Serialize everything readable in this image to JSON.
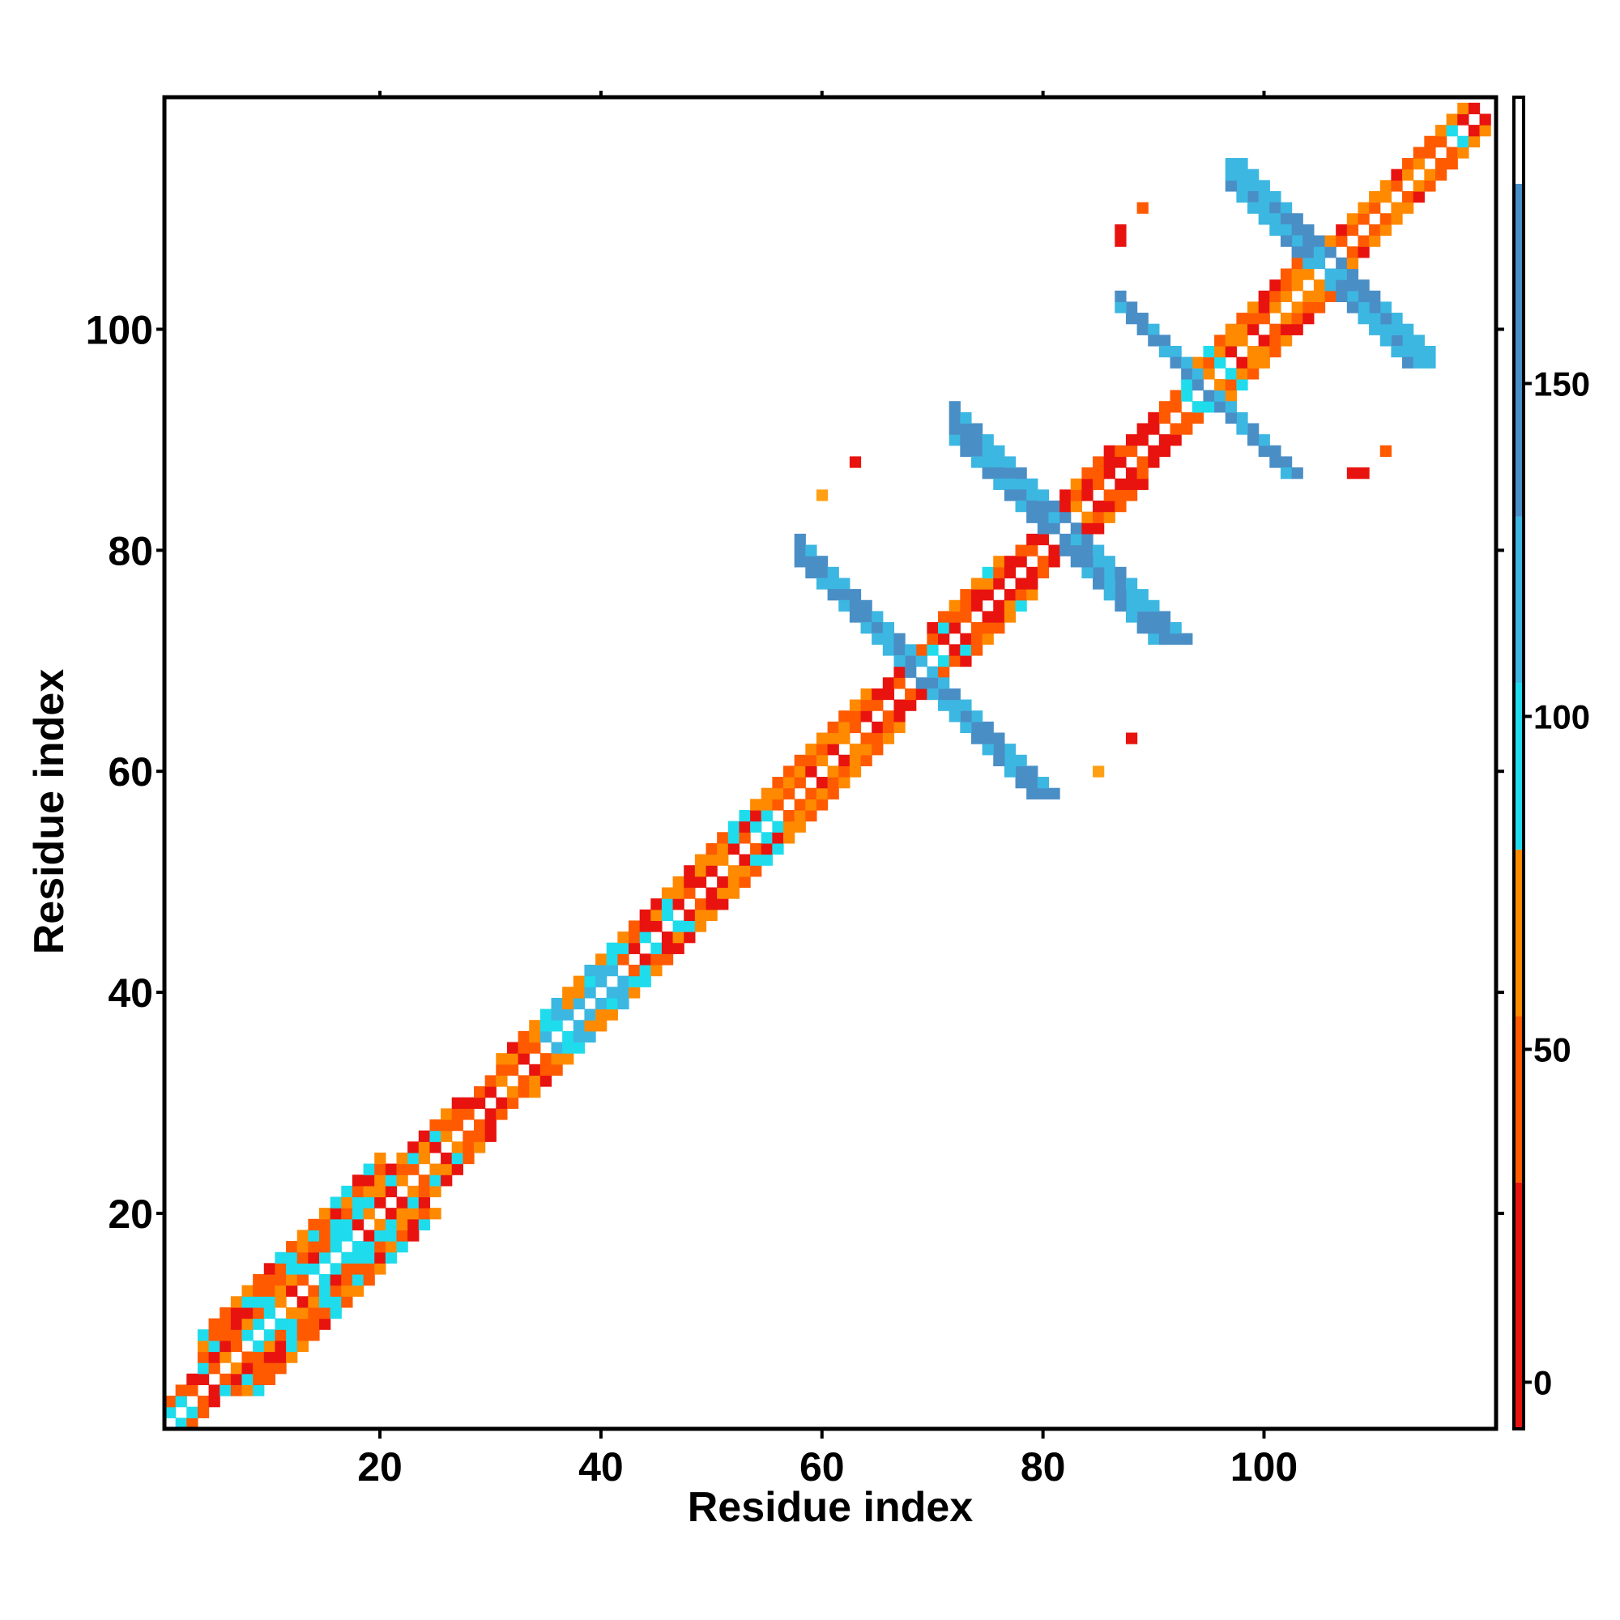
{
  "chart_data": {
    "type": "heatmap",
    "title": "",
    "xlabel": "Residue index",
    "ylabel": "Residue index",
    "n_residues": 120,
    "xlim": [
      0.5,
      121
    ],
    "ylim": [
      0.5,
      121
    ],
    "x_ticks": [
      20,
      40,
      60,
      80,
      100
    ],
    "y_ticks": [
      20,
      40,
      60,
      80,
      100
    ],
    "colorbar": {
      "range": [
        -7,
        193
      ],
      "ticks": [
        0,
        50,
        100,
        150
      ],
      "bands": [
        {
          "from": -7,
          "to": 30,
          "color": "#e8130f"
        },
        {
          "from": 30,
          "to": 55,
          "color": "#ff5a00"
        },
        {
          "from": 55,
          "to": 80,
          "color": "#ff8a00"
        },
        {
          "from": 80,
          "to": 105,
          "color": "#1fdcec"
        },
        {
          "from": 105,
          "to": 130,
          "color": "#3cb7e2"
        },
        {
          "from": 130,
          "to": 180,
          "color": "#4a8ec6"
        },
        {
          "from": 180,
          "to": 193,
          "color": "#ffffff"
        }
      ]
    },
    "colors": {
      "red": "#e8130f",
      "orange_red": "#ff5a00",
      "orange": "#ff8a00",
      "amber": "#ffa014",
      "cyan": "#1fdcec",
      "sky": "#3cb7e2",
      "steel": "#4a8ec6"
    },
    "diagonal_segments": [
      {
        "from": 1,
        "to": 4,
        "palette": [
          "red",
          "cyan",
          "orange_red"
        ],
        "width": 2
      },
      {
        "from": 4,
        "to": 20,
        "palette": [
          "orange_red",
          "orange",
          "cyan",
          "red",
          "orange_red",
          "cyan"
        ],
        "width": 5
      },
      {
        "from": 20,
        "to": 27,
        "palette": [
          "orange_red",
          "red",
          "orange",
          "cyan"
        ],
        "width": 3
      },
      {
        "from": 27,
        "to": 31,
        "palette": [
          "red",
          "orange_red"
        ],
        "width": 2
      },
      {
        "from": 31,
        "to": 35,
        "palette": [
          "orange_red",
          "red",
          "orange"
        ],
        "width": 3
      },
      {
        "from": 35,
        "to": 42,
        "palette": [
          "cyan",
          "sky",
          "orange"
        ],
        "width": 3
      },
      {
        "from": 42,
        "to": 57,
        "palette": [
          "orange_red",
          "red",
          "cyan",
          "orange"
        ],
        "width": 3
      },
      {
        "from": 57,
        "to": 64,
        "palette": [
          "orange_red",
          "orange",
          "red"
        ],
        "width": 3
      },
      {
        "from": 64,
        "to": 70,
        "palette": [
          "red",
          "orange_red"
        ],
        "width": 2
      },
      {
        "from": 70,
        "to": 76,
        "palette": [
          "orange_red",
          "orange",
          "cyan",
          "red"
        ],
        "width": 3
      },
      {
        "from": 76,
        "to": 80,
        "palette": [
          "red",
          "orange_red"
        ],
        "width": 2
      },
      {
        "from": 80,
        "to": 86,
        "palette": [
          "orange",
          "orange_red",
          "red"
        ],
        "width": 3
      },
      {
        "from": 86,
        "to": 93,
        "palette": [
          "red",
          "orange_red"
        ],
        "width": 2
      },
      {
        "from": 93,
        "to": 97,
        "palette": [
          "orange",
          "orange_red",
          "cyan"
        ],
        "width": 3
      },
      {
        "from": 97,
        "to": 105,
        "palette": [
          "red",
          "orange_red",
          "orange"
        ],
        "width": 3
      },
      {
        "from": 105,
        "to": 113,
        "palette": [
          "orange_red",
          "red",
          "orange"
        ],
        "width": 2
      },
      {
        "from": 113,
        "to": 120,
        "palette": [
          "orange_red",
          "orange",
          "cyan",
          "red"
        ],
        "width": 2
      }
    ],
    "sheet_contacts": [
      {
        "center": [
          69,
          69
        ],
        "from": [
          58,
          79
        ],
        "to": [
          79,
          58
        ],
        "width": 3,
        "palette": [
          "sky",
          "steel",
          "steel",
          "sky"
        ]
      },
      {
        "center": [
          81,
          81
        ],
        "from": [
          72,
          90
        ],
        "to": [
          91,
          72
        ],
        "width": 3,
        "palette": [
          "steel",
          "sky",
          "steel"
        ]
      },
      {
        "center": [
          94,
          94
        ],
        "from": [
          88,
          101
        ],
        "to": [
          102,
          87
        ],
        "width": 2,
        "palette": [
          "steel",
          "sky",
          "steel"
        ]
      },
      {
        "center": [
          105,
          105
        ],
        "from": [
          98,
          113
        ],
        "to": [
          113,
          97
        ],
        "width": 3,
        "palette": [
          "sky",
          "steel",
          "steel",
          "sky"
        ]
      }
    ],
    "isolated_points": [
      {
        "x": 63,
        "y": 88,
        "color": "red"
      },
      {
        "x": 60,
        "y": 85,
        "color": "amber"
      },
      {
        "x": 88,
        "y": 63,
        "color": "red"
      },
      {
        "x": 85,
        "y": 60,
        "color": "amber"
      },
      {
        "x": 87,
        "y": 108,
        "color": "red"
      },
      {
        "x": 89,
        "y": 111,
        "color": "orange_red"
      },
      {
        "x": 109,
        "y": 87,
        "color": "red"
      },
      {
        "x": 111,
        "y": 89,
        "color": "orange_red"
      }
    ]
  }
}
